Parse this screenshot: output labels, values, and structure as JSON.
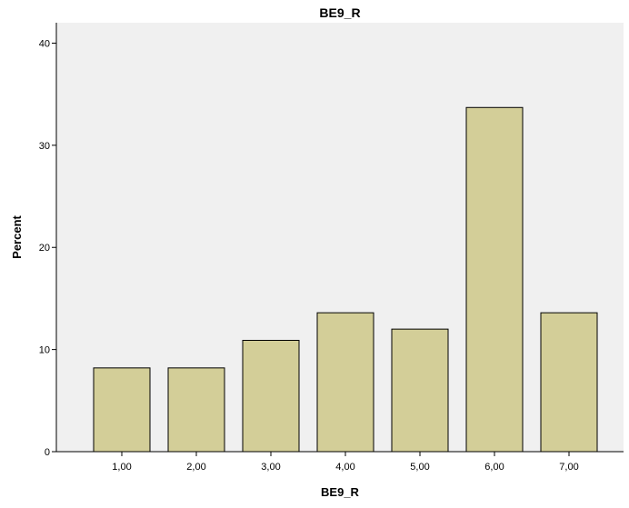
{
  "chart_data": {
    "type": "bar",
    "title": "BE9_R",
    "xlabel": "BE9_R",
    "ylabel": "Percent",
    "categories": [
      "1,00",
      "2,00",
      "3,00",
      "4,00",
      "5,00",
      "6,00",
      "7,00"
    ],
    "values": [
      8.2,
      8.2,
      10.9,
      13.6,
      12.0,
      33.7,
      13.6
    ],
    "ylim": [
      0,
      42
    ],
    "yticks": [
      0,
      10,
      20,
      30,
      40
    ],
    "ytick_labels": [
      "0",
      "10",
      "20",
      "30",
      "40"
    ],
    "grid": false,
    "legend": "none",
    "colors": {
      "bar_fill": "#d3ce98",
      "bar_stroke": "#000000",
      "plot_background": "#f0f0f0",
      "axis": "#000000"
    }
  }
}
